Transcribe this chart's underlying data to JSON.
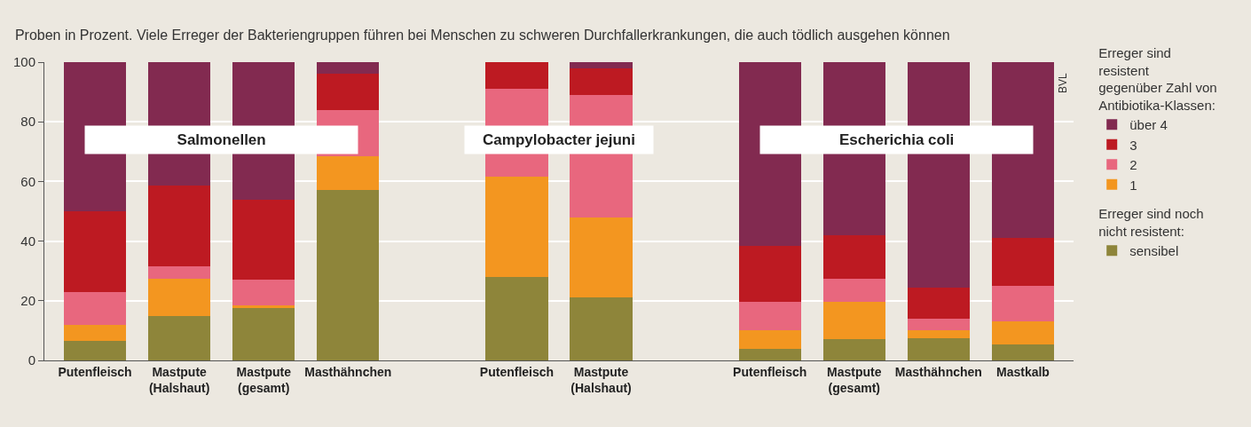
{
  "chart_data": {
    "type": "bar",
    "stacked": true,
    "title": "Proben in Prozent. Viele Erreger der Bakteriengruppen führen bei Menschen zu schweren Durchfallerkrankungen, die auch tödlich ausgehen können",
    "categories": [
      "Putenfleisch",
      "Mastpute (Halshaut)",
      "Mastpute (gesamt)",
      "Masthähnchen",
      null,
      "Putenfleisch",
      "Mastpute (Halshaut)",
      null,
      "Putenfleisch",
      "Mastpute (gesamt)",
      "Masthähnchen",
      "Mastkalb"
    ],
    "series": [
      {
        "name": "sensibel",
        "color": "#8e853a",
        "values": [
          6.5,
          15,
          17.5,
          57,
          null,
          28,
          21,
          null,
          4,
          7,
          7.5,
          5.5
        ]
      },
      {
        "name": "1",
        "color": "#f39620",
        "values": [
          5.5,
          12.5,
          1,
          11.5,
          null,
          33.5,
          27,
          null,
          6,
          12.5,
          2.5,
          7.5
        ]
      },
      {
        "name": "2",
        "color": "#e8677e",
        "values": [
          11,
          4,
          8.5,
          15.5,
          null,
          29.5,
          41,
          null,
          9.5,
          8,
          4,
          12
        ]
      },
      {
        "name": "3",
        "color": "#bd1a22",
        "values": [
          27,
          27,
          27,
          12,
          null,
          9,
          9,
          null,
          19,
          14.5,
          10.5,
          16
        ]
      },
      {
        "name": "über 4",
        "color": "#822a50",
        "values": [
          50,
          41.5,
          46,
          4,
          null,
          0,
          2,
          null,
          61.5,
          58,
          75.5,
          59
        ]
      }
    ],
    "ylim": [
      0,
      100
    ],
    "yticks": [
      0,
      20,
      40,
      60,
      80,
      100
    ],
    "grid": "y",
    "legend": "right",
    "legend_title": "Erreger sind resistent gegenüber Zahl von Antibiotika-Klassen:",
    "annotations": [
      "Salmonellen",
      "Campylobacter jejuni",
      "Escherichia coli",
      "Erreger sind noch nicht resistent:",
      "BVL"
    ]
  }
}
